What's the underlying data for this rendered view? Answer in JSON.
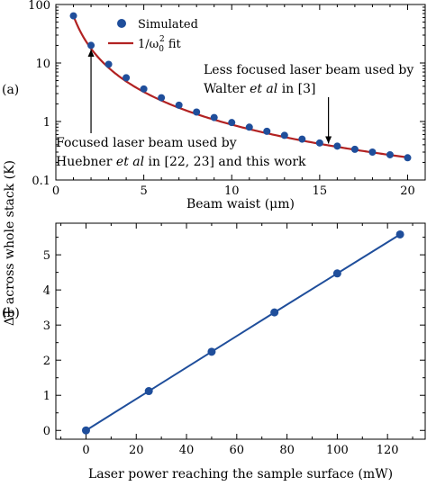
{
  "panel_labels": {
    "a": "(a)",
    "b": "(b)"
  },
  "shared_ylabel": "ΔT across whole stack (K)",
  "colors": {
    "marker": "#1f4e9b",
    "fit_line": "#b22222",
    "line_b": "#1f4e9b"
  },
  "chart_data": [
    {
      "type": "scatter",
      "panel": "(a)",
      "xlabel": "Beam waist (μm)",
      "ylabel": "ΔT across whole stack (K)",
      "xlim": [
        0,
        21
      ],
      "ylim": [
        0.1,
        100
      ],
      "yscale": "log",
      "xticks": [
        0,
        5,
        10,
        15,
        20
      ],
      "yticks": [
        {
          "value": 0.1,
          "label": "0.1"
        },
        {
          "value": 1,
          "label": "1"
        },
        {
          "value": 10,
          "label": "10"
        },
        {
          "value": 100,
          "label": "100"
        }
      ],
      "legend": {
        "placement": "top-center",
        "entries": [
          {
            "label": "Simulated",
            "kind": "marker"
          },
          {
            "label_main": "1/ω",
            "label_sub": "0",
            "label_sup": "2",
            "label_tail": " fit",
            "kind": "line"
          }
        ]
      },
      "series": [
        {
          "name": "Simulated",
          "x": [
            1,
            2,
            3,
            4,
            5,
            6,
            7,
            8,
            9,
            10,
            11,
            12,
            13,
            14,
            15,
            16,
            17,
            18,
            19,
            20
          ],
          "y": [
            64,
            20,
            9.5,
            5.6,
            3.6,
            2.55,
            1.9,
            1.45,
            1.17,
            0.96,
            0.8,
            0.68,
            0.58,
            0.5,
            0.43,
            0.38,
            0.335,
            0.3,
            0.27,
            0.24
          ]
        },
        {
          "name": "1/ω0² fit",
          "fit": {
            "form": "a*x^-b",
            "a": 64,
            "b": 1.86
          }
        }
      ],
      "annotations": [
        {
          "lines": [
            "Focused laser beam used by",
            "Huebner et al in [22, 23] and this work"
          ],
          "arrow_to_x": 2,
          "arrow_to_y": 17
        },
        {
          "lines": [
            "Less focused laser beam used by",
            "Walter et al in [3]"
          ],
          "arrow_to_x": 15.5,
          "arrow_to_y": 0.42
        }
      ],
      "annot_text": {
        "l1": "Focused laser beam used by",
        "l2a": "Huebner ",
        "l2b": "et al",
        "l2c": " in [22, 23] and this work",
        "r1": "Less focused laser beam used by",
        "r2a": "Walter ",
        "r2b": "et al",
        "r2c": " in [3]"
      }
    },
    {
      "type": "line",
      "panel": "(b)",
      "xlabel": "Laser power reaching the sample surface (mW)",
      "ylabel": "ΔT across whole stack (K)",
      "xlim": [
        -12,
        135
      ],
      "ylim": [
        -0.25,
        5.9
      ],
      "xticks": [
        0,
        20,
        40,
        60,
        80,
        100,
        120
      ],
      "yticks": [
        0,
        1,
        2,
        3,
        4,
        5
      ],
      "series": [
        {
          "name": "",
          "x": [
            0,
            25,
            50,
            75,
            100,
            125
          ],
          "y": [
            0.0,
            1.12,
            2.24,
            3.36,
            4.47,
            5.58
          ]
        }
      ]
    }
  ]
}
